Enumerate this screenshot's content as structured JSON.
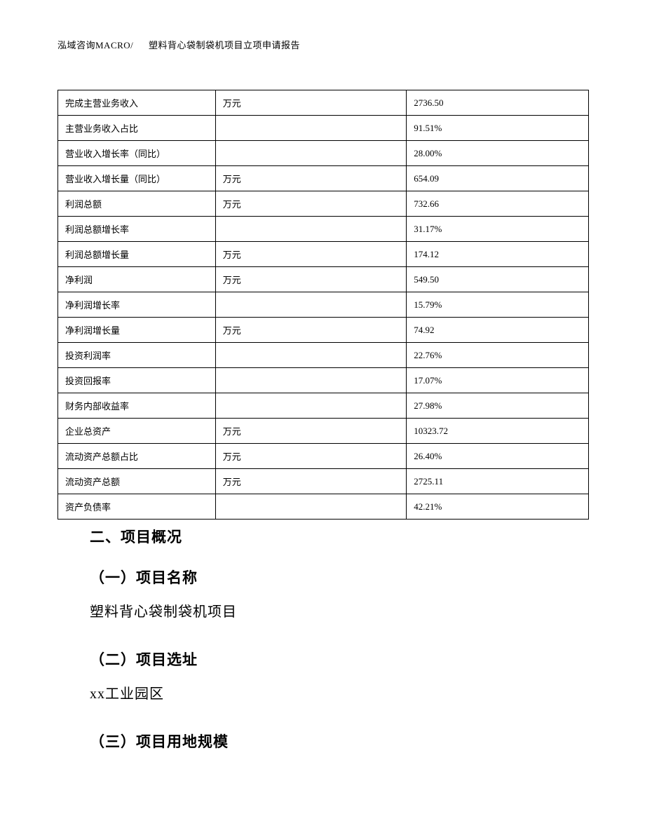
{
  "header": {
    "company": "泓域咨询MACRO/",
    "title": "塑料背心袋制袋机项目立项申请报告"
  },
  "table": {
    "rows": [
      {
        "label": "完成主营业务收入",
        "unit": "万元",
        "value": "2736.50"
      },
      {
        "label": "主营业务收入占比",
        "unit": "",
        "value": "91.51%"
      },
      {
        "label": "营业收入增长率（同比）",
        "unit": "",
        "value": "28.00%"
      },
      {
        "label": "营业收入增长量（同比）",
        "unit": "万元",
        "value": "654.09"
      },
      {
        "label": "利润总额",
        "unit": "万元",
        "value": "732.66"
      },
      {
        "label": "利润总额增长率",
        "unit": "",
        "value": "31.17%"
      },
      {
        "label": "利润总额增长量",
        "unit": "万元",
        "value": "174.12"
      },
      {
        "label": "净利润",
        "unit": "万元",
        "value": "549.50"
      },
      {
        "label": "净利润增长率",
        "unit": "",
        "value": "15.79%"
      },
      {
        "label": "净利润增长量",
        "unit": "万元",
        "value": "74.92"
      },
      {
        "label": "投资利润率",
        "unit": "",
        "value": "22.76%"
      },
      {
        "label": "投资回报率",
        "unit": "",
        "value": "17.07%"
      },
      {
        "label": "财务内部收益率",
        "unit": "",
        "value": "27.98%"
      },
      {
        "label": "企业总资产",
        "unit": "万元",
        "value": "10323.72"
      },
      {
        "label": "流动资产总额占比",
        "unit": "万元",
        "value": "26.40%"
      },
      {
        "label": "流动资产总额",
        "unit": "万元",
        "value": "2725.11"
      },
      {
        "label": "资产负债率",
        "unit": "",
        "value": "42.21%"
      }
    ]
  },
  "sections": {
    "main_heading": "二、项目概况",
    "sub1_heading": "（一）项目名称",
    "sub1_body": "塑料背心袋制袋机项目",
    "sub2_heading": "（二）项目选址",
    "sub2_body": "xx工业园区",
    "sub3_heading": "（三）项目用地规模"
  }
}
